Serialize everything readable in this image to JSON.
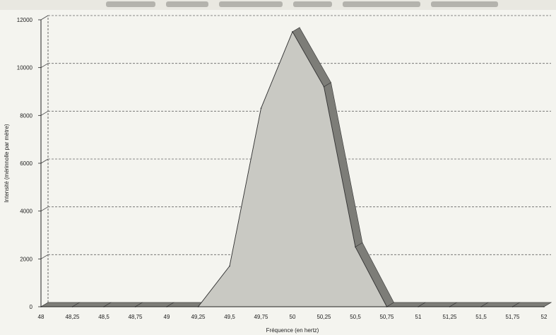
{
  "chart_data": {
    "type": "area",
    "x": [
      48,
      48.25,
      48.5,
      48.75,
      49,
      49.25,
      49.5,
      49.75,
      50,
      50.25,
      50.5,
      50.75,
      51,
      51.25,
      51.5,
      51.75,
      52
    ],
    "x_tick_labels": [
      "48",
      "48,25",
      "48,5",
      "48,75",
      "49",
      "49,25",
      "49,5",
      "49,75",
      "50",
      "50,25",
      "50,5",
      "50,75",
      "51",
      "51,25",
      "51,5",
      "51,75",
      "52"
    ],
    "values": [
      0,
      0,
      0,
      0,
      0,
      0,
      1700,
      8300,
      11500,
      9200,
      2500,
      0,
      0,
      0,
      0,
      0,
      0
    ],
    "ylim": [
      0,
      12000
    ],
    "y_ticks": [
      0,
      2000,
      4000,
      6000,
      8000,
      10000,
      12000
    ],
    "y_tick_labels": [
      "0",
      "2000",
      "4000",
      "6000",
      "8000",
      "10000",
      "12000"
    ],
    "xlabel": "Fréquence (en hertz)",
    "ylabel": "Intensité (mérinnolle par mètre)",
    "title": "",
    "grid": true,
    "legend": "none",
    "fill_color": "#c9c9c3",
    "side_color": "#7d7d78",
    "grid_color": "#666666"
  }
}
